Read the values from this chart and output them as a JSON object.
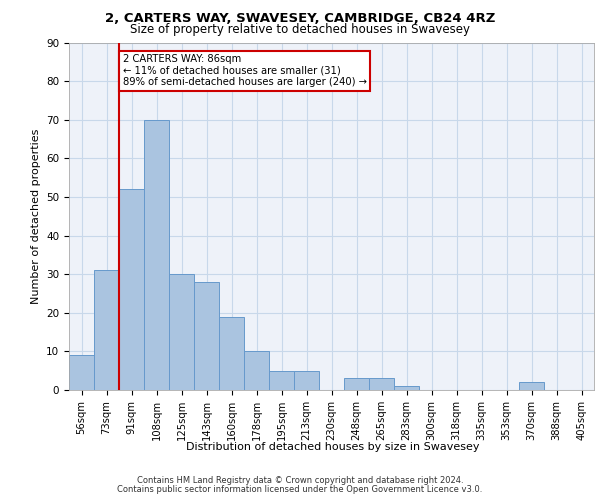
{
  "title_line1": "2, CARTERS WAY, SWAVESEY, CAMBRIDGE, CB24 4RZ",
  "title_line2": "Size of property relative to detached houses in Swavesey",
  "xlabel": "Distribution of detached houses by size in Swavesey",
  "ylabel": "Number of detached properties",
  "bar_labels": [
    "56sqm",
    "73sqm",
    "91sqm",
    "108sqm",
    "125sqm",
    "143sqm",
    "160sqm",
    "178sqm",
    "195sqm",
    "213sqm",
    "230sqm",
    "248sqm",
    "265sqm",
    "283sqm",
    "300sqm",
    "318sqm",
    "335sqm",
    "353sqm",
    "370sqm",
    "388sqm",
    "405sqm"
  ],
  "bar_values": [
    9,
    31,
    52,
    70,
    30,
    28,
    19,
    10,
    5,
    5,
    0,
    3,
    3,
    1,
    0,
    0,
    0,
    0,
    2,
    0,
    0
  ],
  "bar_color": "#aac4e0",
  "bar_edge_color": "#6699cc",
  "grid_color": "#c8d8ea",
  "background_color": "#eef2f9",
  "vline_color": "#cc0000",
  "vline_index": 2,
  "annotation_text": "2 CARTERS WAY: 86sqm\n← 11% of detached houses are smaller (31)\n89% of semi-detached houses are larger (240) →",
  "annotation_box_color": "#cc0000",
  "ylim": [
    0,
    90
  ],
  "yticks": [
    0,
    10,
    20,
    30,
    40,
    50,
    60,
    70,
    80,
    90
  ],
  "footer_line1": "Contains HM Land Registry data © Crown copyright and database right 2024.",
  "footer_line2": "Contains public sector information licensed under the Open Government Licence v3.0."
}
